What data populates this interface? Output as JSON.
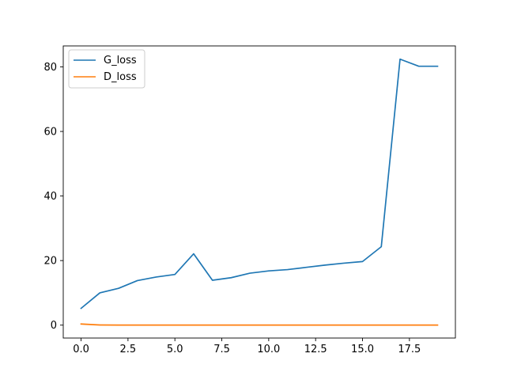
{
  "chart_data": {
    "type": "line",
    "title": "",
    "xlabel": "",
    "ylabel": "",
    "xlim": [
      -0.95,
      19.95
    ],
    "ylim": [
      -4.0,
      86.5
    ],
    "x": [
      0,
      1,
      2,
      3,
      4,
      5,
      6,
      7,
      8,
      9,
      10,
      11,
      12,
      13,
      14,
      15,
      16,
      17,
      18,
      19
    ],
    "x_ticks": [
      0.0,
      2.5,
      5.0,
      7.5,
      10.0,
      12.5,
      15.0,
      17.5
    ],
    "x_tick_labels": [
      "0.0",
      "2.5",
      "5.0",
      "7.5",
      "10.0",
      "12.5",
      "15.0",
      "17.5"
    ],
    "y_ticks": [
      0,
      20,
      40,
      60,
      80
    ],
    "y_tick_labels": [
      "0",
      "20",
      "40",
      "60",
      "80"
    ],
    "grid": false,
    "legend_position": "upper-left",
    "series": [
      {
        "name": "G_loss",
        "color": "#1f77b4",
        "values": [
          5.2,
          10.0,
          11.4,
          13.8,
          14.9,
          15.7,
          22.1,
          13.9,
          14.7,
          16.1,
          16.8,
          17.2,
          17.9,
          18.6,
          19.2,
          19.7,
          24.3,
          82.4,
          80.2,
          80.2
        ]
      },
      {
        "name": "D_loss",
        "color": "#ff7f0e",
        "values": [
          0.35,
          0.05,
          0.02,
          0.01,
          0.01,
          0.01,
          0.01,
          0.01,
          0.01,
          0.01,
          0.01,
          0.01,
          0.01,
          0.01,
          0.01,
          0.01,
          0.01,
          0.01,
          0.01,
          0.01
        ]
      }
    ]
  }
}
